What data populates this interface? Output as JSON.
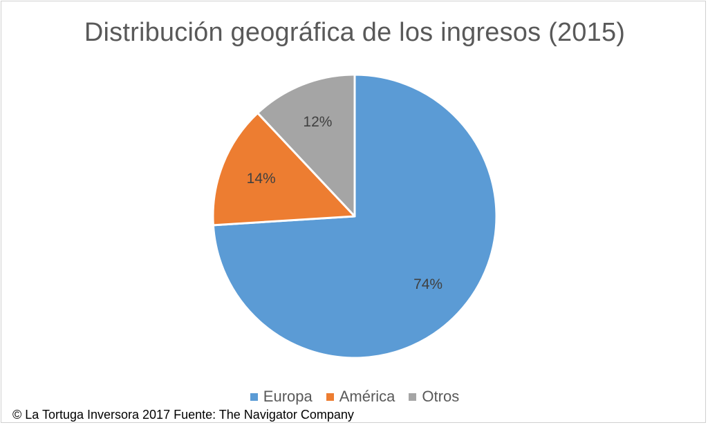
{
  "chart_data": {
    "type": "pie",
    "title": "Distribución geográfica de los ingresos (2015)",
    "categories": [
      "Europa",
      "América",
      "Otros"
    ],
    "values": [
      74,
      14,
      12
    ],
    "labels": [
      "74%",
      "14%",
      "12%"
    ],
    "colors": [
      "#5b9bd5",
      "#ed7d31",
      "#a5a5a5"
    ],
    "legend": "bottom"
  },
  "footer": {
    "text": "© La Tortuga Inversora 2017 Fuente: The Navigator Company"
  }
}
